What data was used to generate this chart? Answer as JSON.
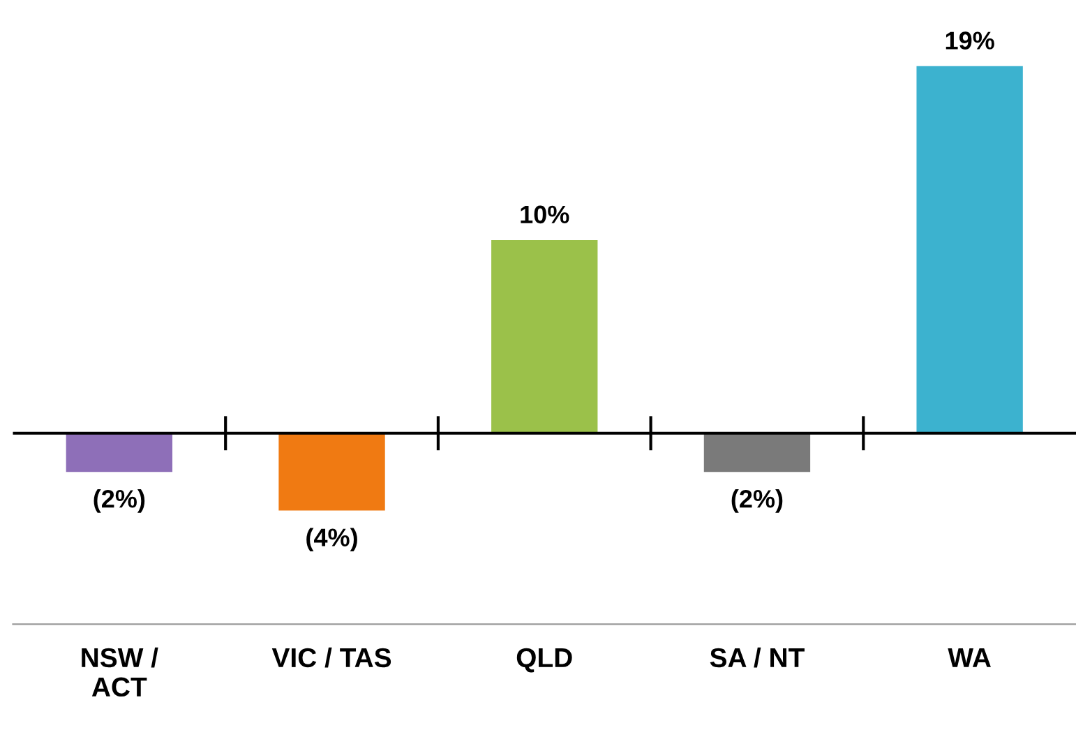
{
  "chart_data": {
    "type": "bar",
    "categories": [
      "NSW /\nACT",
      "VIC / TAS",
      "QLD",
      "SA / NT",
      "WA"
    ],
    "values": [
      -2,
      -4,
      10,
      -2,
      19
    ],
    "colors": [
      "#8e6fb8",
      "#f07a12",
      "#9bc14a",
      "#7a7a7a",
      "#3cb2cf"
    ],
    "value_labels": [
      "(2%)",
      "(4%)",
      "10%",
      "(2%)",
      "19%"
    ],
    "ref_lines": [
      {
        "axis": "y",
        "value": 0,
        "color": "#000000"
      }
    ],
    "grid": false,
    "legend": false
  }
}
